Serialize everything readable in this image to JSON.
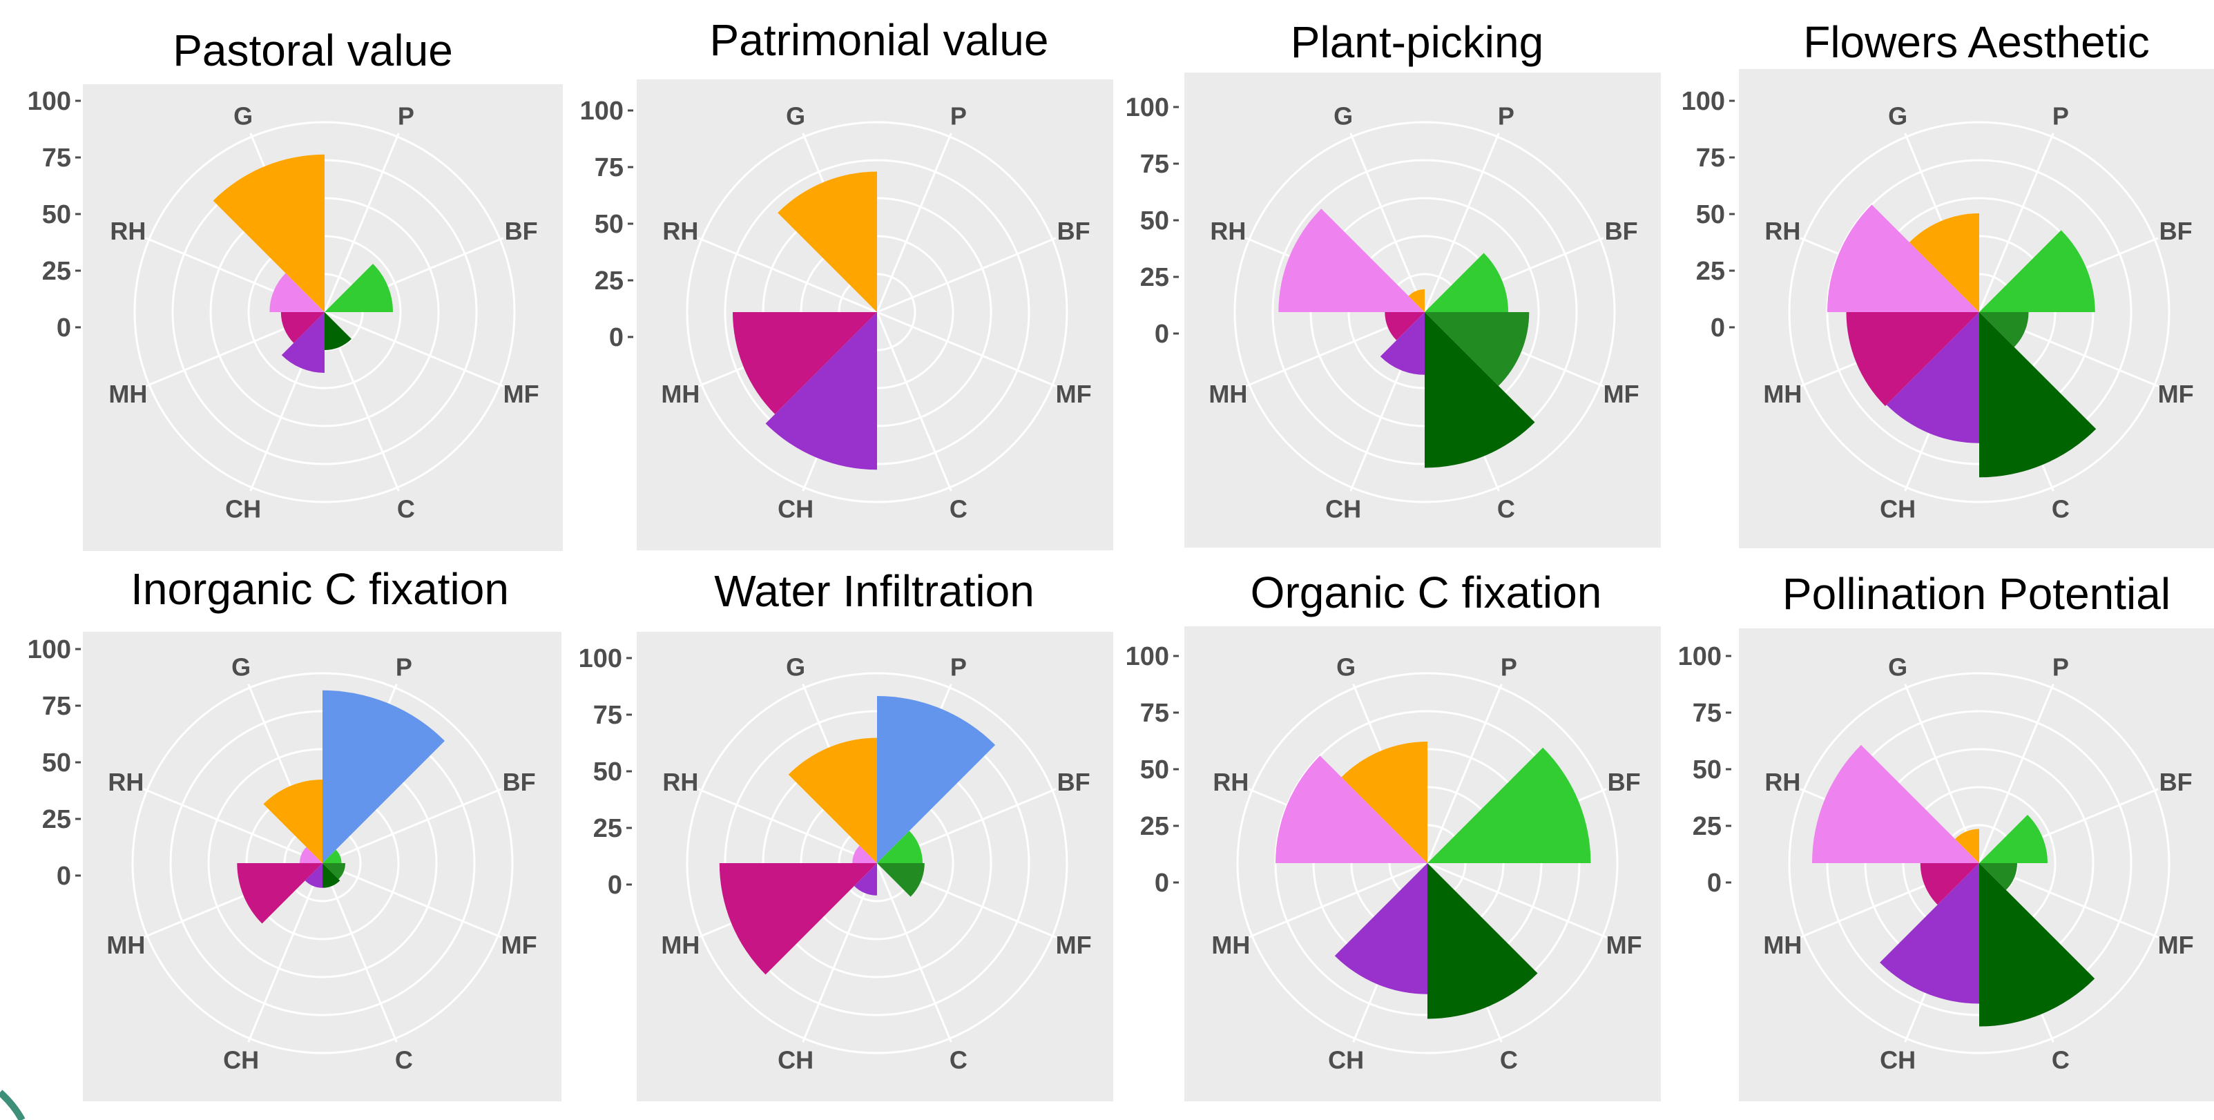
{
  "chart_data": [
    {
      "type": "polar-bar",
      "title": "Pastoral value",
      "categories": [
        "P",
        "BF",
        "MF",
        "C",
        "CH",
        "MH",
        "RH",
        "G"
      ],
      "values": [
        0,
        36,
        0,
        20,
        32,
        23,
        29,
        83
      ],
      "rlim": [
        0,
        100
      ],
      "rticks": [
        "100",
        "75",
        "50",
        "25",
        "0"
      ],
      "colors": [
        "#6495ED",
        "#32CD32",
        "#228B22",
        "#006400",
        "#9932CC",
        "#C71585",
        "#EE82EE",
        "#FFA500"
      ],
      "grid": true,
      "legend": "none"
    },
    {
      "type": "polar-bar",
      "title": "Patrimonial value",
      "categories": [
        "P",
        "BF",
        "MF",
        "C",
        "CH",
        "MH",
        "RH",
        "G"
      ],
      "values": [
        0,
        0,
        0,
        0,
        83,
        76,
        0,
        74
      ],
      "rlim": [
        0,
        100
      ],
      "rticks": [
        "100",
        "75",
        "50",
        "25",
        "0"
      ],
      "colors": [
        "#6495ED",
        "#32CD32",
        "#228B22",
        "#006400",
        "#9932CC",
        "#C71585",
        "#EE82EE",
        "#FFA500"
      ],
      "grid": true,
      "legend": "none"
    },
    {
      "type": "polar-bar",
      "title": "Plant-picking",
      "categories": [
        "P",
        "BF",
        "MF",
        "C",
        "CH",
        "MH",
        "RH",
        "G"
      ],
      "values": [
        0,
        44,
        55,
        82,
        33,
        21,
        77,
        12
      ],
      "rlim": [
        0,
        100
      ],
      "rticks": [
        "100",
        "75",
        "50",
        "25",
        "0"
      ],
      "colors": [
        "#6495ED",
        "#32CD32",
        "#228B22",
        "#006400",
        "#9932CC",
        "#C71585",
        "#EE82EE",
        "#FFA500"
      ],
      "grid": true,
      "legend": "none"
    },
    {
      "type": "polar-bar",
      "title": "Flowers Aesthetic",
      "categories": [
        "P",
        "BF",
        "MF",
        "C",
        "CH",
        "MH",
        "RH",
        "G"
      ],
      "values": [
        0,
        61,
        26,
        87,
        69,
        70,
        80,
        52
      ],
      "rlim": [
        0,
        100
      ],
      "rticks": [
        "100",
        "75",
        "50",
        "25",
        "0"
      ],
      "colors": [
        "#6495ED",
        "#32CD32",
        "#228B22",
        "#006400",
        "#9932CC",
        "#C71585",
        "#EE82EE",
        "#FFA500"
      ],
      "grid": true,
      "legend": "none"
    },
    {
      "type": "polar-bar",
      "title": "Inorganic C fixation",
      "categories": [
        "P",
        "BF",
        "MF",
        "C",
        "CH",
        "MH",
        "RH",
        "G"
      ],
      "values": [
        91,
        10,
        12,
        13,
        13,
        45,
        12,
        44
      ],
      "rlim": [
        0,
        100
      ],
      "rticks": [
        "100",
        "75",
        "50",
        "25",
        "0"
      ],
      "colors": [
        "#6495ED",
        "#32CD32",
        "#228B22",
        "#006400",
        "#9932CC",
        "#C71585",
        "#EE82EE",
        "#FFA500"
      ],
      "grid": true,
      "legend": "none"
    },
    {
      "type": "polar-bar",
      "title": "Water Infiltration",
      "categories": [
        "P",
        "BF",
        "MF",
        "C",
        "CH",
        "MH",
        "RH",
        "G"
      ],
      "values": [
        88,
        24,
        25,
        0,
        17,
        83,
        13,
        66
      ],
      "rlim": [
        0,
        100
      ],
      "rticks": [
        "100",
        "75",
        "50",
        "25",
        "0"
      ],
      "colors": [
        "#6495ED",
        "#32CD32",
        "#228B22",
        "#006400",
        "#9932CC",
        "#C71585",
        "#EE82EE",
        "#FFA500"
      ],
      "grid": true,
      "legend": "none"
    },
    {
      "type": "polar-bar",
      "title": "Organic C fixation",
      "categories": [
        "P",
        "BF",
        "MF",
        "C",
        "CH",
        "MH",
        "RH",
        "G"
      ],
      "values": [
        0,
        86,
        0,
        82,
        69,
        0,
        80,
        64
      ],
      "rlim": [
        0,
        100
      ],
      "rticks": [
        "100",
        "75",
        "50",
        "25",
        "0"
      ],
      "colors": [
        "#6495ED",
        "#32CD32",
        "#228B22",
        "#006400",
        "#9932CC",
        "#C71585",
        "#EE82EE",
        "#FFA500"
      ],
      "grid": true,
      "legend": "none"
    },
    {
      "type": "polar-bar",
      "title": "Pollination Potential",
      "categories": [
        "P",
        "BF",
        "MF",
        "C",
        "CH",
        "MH",
        "RH",
        "G"
      ],
      "values": [
        0,
        36,
        20,
        86,
        74,
        31,
        88,
        18
      ],
      "rlim": [
        0,
        100
      ],
      "rticks": [
        "100",
        "75",
        "50",
        "25",
        "0"
      ],
      "colors": [
        "#6495ED",
        "#32CD32",
        "#228B22",
        "#006400",
        "#9932CC",
        "#C71585",
        "#EE82EE",
        "#FFA500"
      ],
      "grid": true,
      "legend": "none"
    }
  ]
}
